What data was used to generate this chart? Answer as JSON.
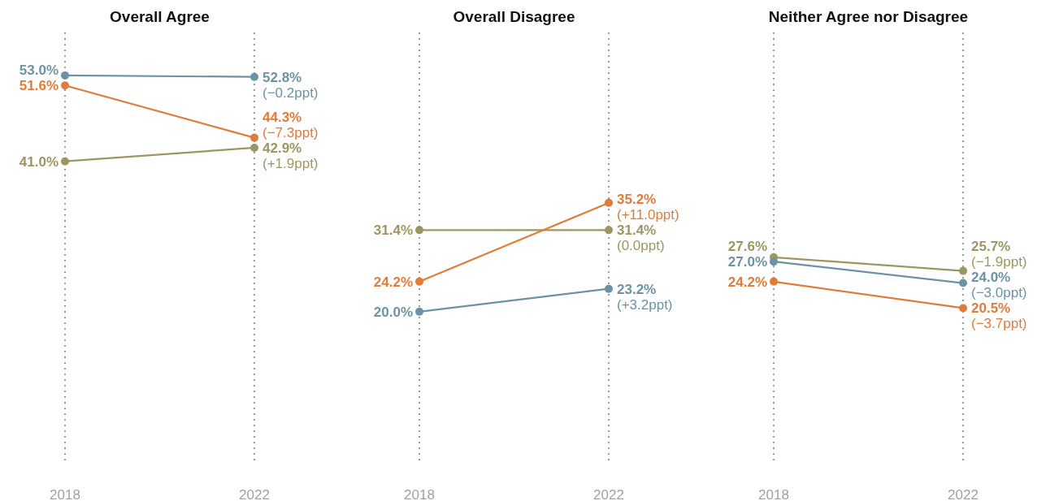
{
  "chart_data": [
    {
      "type": "line",
      "title": "Overall Agree",
      "categories": [
        "2018",
        "2022"
      ],
      "ylim": [
        -1,
        59
      ],
      "grid": "x",
      "marker": "circle",
      "legend": false,
      "tick_labels": "x",
      "series": [
        {
          "color": "#6b93a6",
          "values": [
            53.0,
            52.8
          ],
          "value_labels": [
            "53.0%",
            "52.8%\n(−0.2ppt)"
          ]
        },
        {
          "color": "#e07b39",
          "values": [
            51.6,
            44.3
          ],
          "value_labels": [
            "51.6%",
            "44.3%\n(−7.3ppt)"
          ]
        },
        {
          "color": "#9d9660",
          "values": [
            41.0,
            42.9
          ],
          "value_labels": [
            "41.0%",
            "42.9%\n(+1.9ppt)"
          ]
        }
      ]
    },
    {
      "type": "line",
      "title": "Overall Disagree",
      "categories": [
        "2018",
        "2022"
      ],
      "ylim": [
        -1,
        59
      ],
      "grid": "x",
      "marker": "circle",
      "legend": false,
      "tick_labels": "x",
      "series": [
        {
          "color": "#9d9660",
          "values": [
            31.4,
            31.4
          ],
          "value_labels": [
            "31.4%",
            "31.4%\n(0.0ppt)"
          ]
        },
        {
          "color": "#e07b39",
          "values": [
            24.2,
            35.2
          ],
          "value_labels": [
            "24.2%",
            "35.2%\n(+11.0ppt)"
          ]
        },
        {
          "color": "#6b93a6",
          "values": [
            20.0,
            23.2
          ],
          "value_labels": [
            "20.0%",
            "23.2%\n(+3.2ppt)"
          ]
        }
      ]
    },
    {
      "type": "line",
      "title": "Neither Agree nor Disagree",
      "categories": [
        "2018",
        "2022"
      ],
      "ylim": [
        -1,
        59
      ],
      "grid": "x",
      "marker": "circle",
      "legend": false,
      "tick_labels": "x",
      "series": [
        {
          "color": "#9d9660",
          "values": [
            27.6,
            25.7
          ],
          "value_labels": [
            "27.6%",
            "25.7%\n(−1.9ppt)"
          ]
        },
        {
          "color": "#6b93a6",
          "values": [
            27.0,
            24.0
          ],
          "value_labels": [
            "27.0%",
            "24.0%\n(−3.0ppt)"
          ]
        },
        {
          "color": "#e07b39",
          "values": [
            24.2,
            20.5
          ],
          "value_labels": [
            "24.2%",
            "20.5%\n(−3.7ppt)"
          ]
        }
      ]
    }
  ]
}
